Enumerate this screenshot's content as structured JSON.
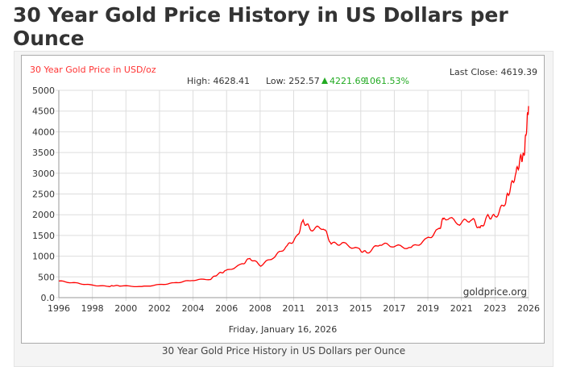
{
  "page_title": "30 Year Gold Price History in US Dollars per Ounce",
  "caption": "30 Year Gold Price History in US Dollars per Ounce",
  "chart_data": {
    "type": "line",
    "title": "30 Year Gold Price in USD/oz",
    "last_close": "Last Close: 4619.39",
    "stats": {
      "high": "High: 4628.41",
      "low": "Low: 252.57",
      "change": "4221.69",
      "change_pct": "1061.53%"
    },
    "date_label": "Friday, January 16, 2026",
    "watermark": "goldprice.org",
    "xlim": [
      1996,
      2026
    ],
    "ylim": [
      0,
      5000
    ],
    "x_ticks": [
      "1996",
      "1998",
      "2000",
      "2002",
      "2004",
      "2006",
      "2008",
      "2011",
      "2013",
      "2015",
      "2017",
      "2019",
      "2021",
      "2023",
      "2026"
    ],
    "y_ticks": [
      "0.0",
      "500",
      "1000",
      "1500",
      "2000",
      "2500",
      "3000",
      "3500",
      "4000",
      "4500",
      "5000"
    ],
    "grid": true,
    "colors": {
      "line": "#ff0000",
      "title": "#ff3333",
      "up": "#22aa22"
    },
    "series": [
      {
        "x": [
          1996,
          1997.1,
          1998.1,
          1999.2,
          1999.5,
          2000,
          2001.3,
          2002.4,
          2003.5,
          2004.5,
          2005.7,
          2006.2,
          2006.65,
          2007.7,
          2008.2,
          2008.9,
          2009.8,
          2010.6,
          2011.2,
          2011.6,
          2012.1,
          2012.9,
          2013.4,
          2014.2,
          2015.2,
          2015.7,
          2016.5,
          2017.4,
          2018.5,
          2019.5,
          2020.3,
          2020.6,
          2021.6,
          2022.4,
          2022.9,
          2023.4,
          2023.9,
          2024.5,
          2024.8,
          2025.2,
          2025.5,
          2025.7,
          2025.85,
          2026
        ],
        "y": [
          400,
          350,
          300,
          270,
          290,
          285,
          265,
          310,
          360,
          420,
          450,
          580,
          640,
          800,
          950,
          780,
          1000,
          1250,
          1450,
          1850,
          1650,
          1700,
          1300,
          1300,
          1150,
          1080,
          1300,
          1250,
          1200,
          1400,
          1650,
          1950,
          1800,
          1900,
          1650,
          1950,
          1950,
          2300,
          2600,
          3000,
          3350,
          3400,
          4000,
          4620
        ]
      }
    ]
  }
}
